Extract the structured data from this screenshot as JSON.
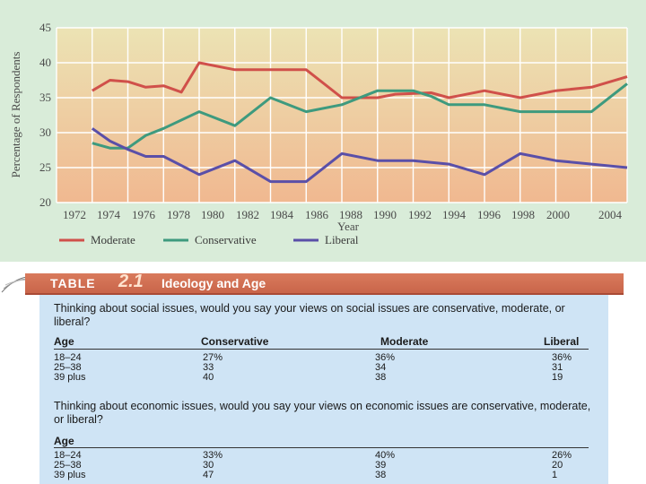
{
  "chart_data": {
    "type": "line",
    "title": "",
    "xlabel": "Year",
    "ylabel": "Percentage of Respondents",
    "ylim": [
      20,
      45
    ],
    "xlim": [
      1972,
      2004
    ],
    "yticks": [
      20,
      25,
      30,
      35,
      40,
      45
    ],
    "xticks": [
      "1972",
      "1974",
      "1976",
      "1978",
      "1980",
      "1982",
      "1984",
      "1986",
      "1988",
      "1990",
      "1992",
      "1994",
      "1996",
      "1998",
      "2000",
      "2004"
    ],
    "series": [
      {
        "name": "Moderate",
        "color": "#d0504a",
        "x": [
          1974,
          1975,
          1976,
          1977,
          1978,
          1979,
          1980,
          1982,
          1984,
          1986,
          1988,
          1990,
          1991,
          1993,
          1994,
          1996,
          1998,
          2000,
          2002,
          2004
        ],
        "y": [
          36,
          37.5,
          37.3,
          36.5,
          36.7,
          35.8,
          40,
          39,
          39,
          39,
          35,
          35,
          35.5,
          35.7,
          35,
          36,
          35,
          36,
          36.5,
          38
        ]
      },
      {
        "name": "Conservative",
        "color": "#3e9a7e",
        "x": [
          1974,
          1975,
          1976,
          1977,
          1978,
          1980,
          1982,
          1984,
          1986,
          1988,
          1990,
          1992,
          1993,
          1994,
          1996,
          1998,
          2000,
          2002,
          2004
        ],
        "y": [
          28.5,
          27.8,
          27.8,
          29.6,
          30.6,
          33,
          31,
          35,
          33,
          34,
          36,
          36,
          35.2,
          34,
          34,
          33,
          33,
          33,
          37
        ]
      },
      {
        "name": "Liberal",
        "color": "#5a4fa8",
        "x": [
          1974,
          1975,
          1976,
          1977,
          1978,
          1980,
          1982,
          1984,
          1986,
          1988,
          1990,
          1992,
          1994,
          1996,
          1998,
          2000,
          2002,
          2004
        ],
        "y": [
          30.6,
          28.8,
          27.6,
          26.6,
          26.6,
          24,
          26,
          23,
          23,
          27,
          26,
          26,
          25.5,
          24,
          27,
          26,
          25.5,
          25
        ]
      }
    ],
    "legend": [
      "Moderate",
      "Conservative",
      "Liberal"
    ],
    "legend_position": "bottom",
    "background_gradient": [
      "#ece3b4",
      "#f0b890"
    ]
  },
  "table": {
    "label": "TABLE",
    "number": "2.1",
    "title": "Ideology and Age",
    "q1": "Thinking about social issues, would you say your views on social issues are conservative, moderate, or liberal?",
    "q2": "Thinking about economic issues, would you say your views on economic issues are conservative, moderate, or liberal?",
    "headers": {
      "age": "Age",
      "conservative": "Conservative",
      "moderate": "Moderate",
      "liberal": "Liberal"
    },
    "age_header_2": "Age",
    "social": [
      {
        "age": "18–24",
        "conservative": "27%",
        "moderate": "36%",
        "liberal": "36%"
      },
      {
        "age": "25–38",
        "conservative": "33",
        "moderate": "34",
        "liberal": "31"
      },
      {
        "age": "39 plus",
        "conservative": "40",
        "moderate": "38",
        "liberal": "19"
      }
    ],
    "economic": [
      {
        "age": "18–24",
        "conservative": "33%",
        "moderate": "40%",
        "liberal": "26%"
      },
      {
        "age": "25–38",
        "conservative": "30",
        "moderate": "39",
        "liberal": "20"
      },
      {
        "age": "39 plus",
        "conservative": "47",
        "moderate": "38",
        "liberal": "1"
      }
    ]
  }
}
